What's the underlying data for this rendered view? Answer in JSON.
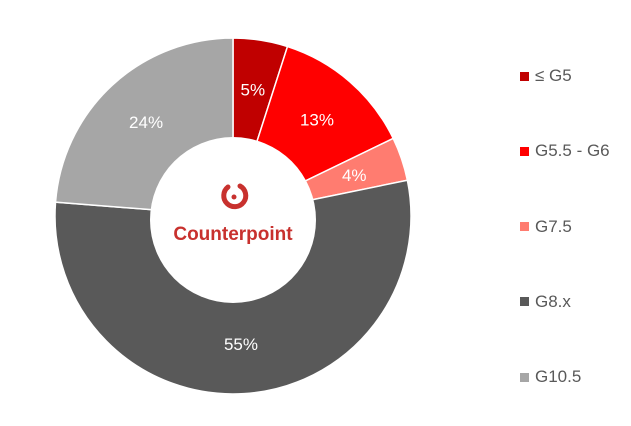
{
  "chart_data": {
    "type": "pie",
    "donut": true,
    "categories": [
      "≤ G5",
      "G5.5 - G6",
      "G7.5",
      "G8.x",
      "G10.5"
    ],
    "values": [
      5,
      13,
      4,
      55,
      24
    ],
    "labels": [
      "5%",
      "13%",
      "4%",
      "55%",
      "24%"
    ],
    "colors": [
      "#c00000",
      "#ff0000",
      "#ff7c70",
      "#595959",
      "#a6a6a6"
    ],
    "legend_position": "right",
    "title": ""
  },
  "logo": {
    "text": "Counterpoint",
    "color": "#c8312e"
  }
}
